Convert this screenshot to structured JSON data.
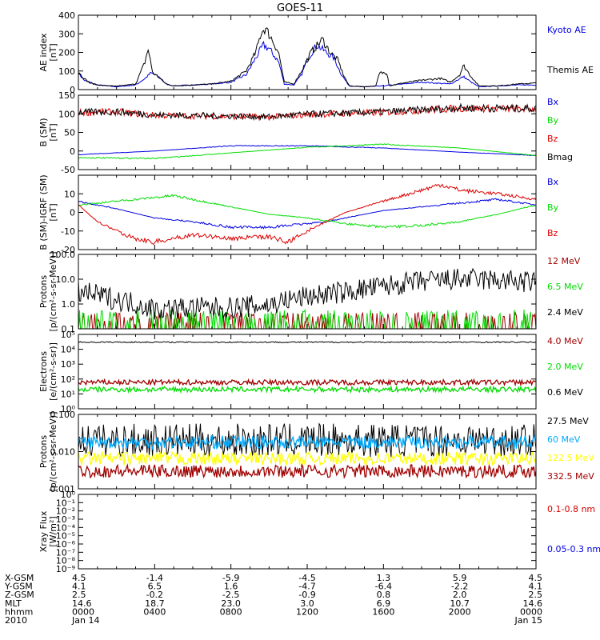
{
  "title": "GOES-11",
  "colors": {
    "black": "#000000",
    "blue": "#0000e0",
    "green": "#00dd00",
    "red": "#dd0000",
    "darkred": "#a00000",
    "yellow": "#ffff00",
    "cyan": "#00aaff"
  },
  "chart_data": [
    {
      "id": "ae",
      "type": "line",
      "ylabel": [
        "AE index",
        "[nT]"
      ],
      "yscale": "linear",
      "ylim": [
        0,
        400
      ],
      "ticks": [
        {
          "v": 0,
          "l": "0"
        },
        {
          "v": 100,
          "l": "100"
        },
        {
          "v": 200,
          "l": "200"
        },
        {
          "v": 300,
          "l": "300"
        },
        {
          "v": 400,
          "l": "400"
        }
      ],
      "series": [
        {
          "name": "Kyoto AE",
          "color": "#0000e0",
          "points": [
            [
              0,
              90
            ],
            [
              0.3,
              50
            ],
            [
              0.6,
              40
            ],
            [
              1,
              25
            ],
            [
              2,
              15
            ],
            [
              3,
              25
            ],
            [
              3.5,
              60
            ],
            [
              3.8,
              90
            ],
            [
              4.2,
              70
            ],
            [
              4.6,
              30
            ],
            [
              5,
              20
            ],
            [
              6,
              25
            ],
            [
              7,
              30
            ],
            [
              8,
              40
            ],
            [
              8.8,
              80
            ],
            [
              9.3,
              170
            ],
            [
              9.7,
              240
            ],
            [
              10,
              220
            ],
            [
              10.5,
              150
            ],
            [
              10.8,
              30
            ],
            [
              11.3,
              25
            ],
            [
              11.7,
              80
            ],
            [
              12,
              160
            ],
            [
              12.5,
              240
            ],
            [
              13,
              200
            ],
            [
              13.4,
              170
            ],
            [
              13.8,
              80
            ],
            [
              14.2,
              20
            ],
            [
              15,
              15
            ],
            [
              16,
              20
            ],
            [
              17,
              30
            ],
            [
              18,
              40
            ],
            [
              19.5,
              30
            ],
            [
              20.2,
              70
            ],
            [
              20.6,
              40
            ],
            [
              21,
              15
            ],
            [
              22,
              20
            ],
            [
              23,
              25
            ],
            [
              24,
              25
            ]
          ]
        },
        {
          "name": "Themis AE",
          "color": "#000000",
          "points": [
            [
              0,
              95
            ],
            [
              0.3,
              60
            ],
            [
              0.6,
              35
            ],
            [
              1,
              25
            ],
            [
              2,
              18
            ],
            [
              3,
              30
            ],
            [
              3.5,
              150
            ],
            [
              3.65,
              220
            ],
            [
              3.9,
              90
            ],
            [
              4.3,
              60
            ],
            [
              4.6,
              30
            ],
            [
              5,
              20
            ],
            [
              6,
              25
            ],
            [
              7,
              30
            ],
            [
              8,
              45
            ],
            [
              8.8,
              100
            ],
            [
              9.3,
              200
            ],
            [
              9.6,
              310
            ],
            [
              9.8,
              330
            ],
            [
              10.1,
              280
            ],
            [
              10.5,
              200
            ],
            [
              10.8,
              40
            ],
            [
              11.3,
              30
            ],
            [
              11.7,
              100
            ],
            [
              12.2,
              200
            ],
            [
              12.8,
              270
            ],
            [
              13.2,
              200
            ],
            [
              13.6,
              160
            ],
            [
              13.9,
              80
            ],
            [
              14.2,
              20
            ],
            [
              15,
              15
            ],
            [
              15.6,
              20
            ],
            [
              15.8,
              90
            ],
            [
              16.2,
              90
            ],
            [
              16.3,
              20
            ],
            [
              17,
              35
            ],
            [
              18,
              50
            ],
            [
              19,
              60
            ],
            [
              19.5,
              40
            ],
            [
              20,
              80
            ],
            [
              20.2,
              130
            ],
            [
              20.6,
              70
            ],
            [
              21,
              20
            ],
            [
              22,
              20
            ],
            [
              23,
              30
            ],
            [
              24,
              35
            ]
          ]
        }
      ]
    },
    {
      "id": "b",
      "type": "line",
      "ylabel": [
        "B (SM)",
        "[nT]"
      ],
      "yscale": "linear",
      "ylim": [
        -50,
        150
      ],
      "ticks": [
        {
          "v": -50,
          "l": "-50"
        },
        {
          "v": 0,
          "l": "0"
        },
        {
          "v": 50,
          "l": "50"
        },
        {
          "v": 100,
          "l": "100"
        },
        {
          "v": 150,
          "l": "150"
        }
      ],
      "series": [
        {
          "name": "Bx",
          "color": "#0000e0",
          "points": [
            [
              0,
              -10
            ],
            [
              4,
              0
            ],
            [
              8,
              14
            ],
            [
              12,
              14
            ],
            [
              16,
              8
            ],
            [
              20,
              -3
            ],
            [
              24,
              -12
            ]
          ]
        },
        {
          "name": "By",
          "color": "#00dd00",
          "points": [
            [
              0,
              -18
            ],
            [
              4,
              -20
            ],
            [
              8,
              -5
            ],
            [
              12,
              10
            ],
            [
              16,
              18
            ],
            [
              20,
              8
            ],
            [
              24,
              -12
            ]
          ]
        },
        {
          "name": "Bz",
          "color": "#dd0000",
          "points": [
            [
              0,
              103
            ],
            [
              2,
              105
            ],
            [
              4,
              96
            ],
            [
              8,
              93
            ],
            [
              10,
              91
            ],
            [
              12,
              98
            ],
            [
              16,
              104
            ],
            [
              20,
              115
            ],
            [
              24,
              113
            ]
          ]
        },
        {
          "name": "Bmag",
          "color": "#000000",
          "points": [
            [
              0,
              104
            ],
            [
              2,
              106
            ],
            [
              4,
              97
            ],
            [
              8,
              94
            ],
            [
              10,
              92
            ],
            [
              12,
              99
            ],
            [
              16,
              105
            ],
            [
              20,
              116
            ],
            [
              24,
              114
            ]
          ]
        }
      ]
    },
    {
      "id": "bdiff",
      "type": "line",
      "ylabel": [
        "B (SM)-IGRF (SM)",
        "[nT]"
      ],
      "yscale": "linear",
      "ylim": [
        -20,
        20
      ],
      "ticks": [
        {
          "v": -20,
          "l": "-20"
        },
        {
          "v": -10,
          "l": "-10"
        },
        {
          "v": 0,
          "l": "0"
        },
        {
          "v": 10,
          "l": "10"
        }
      ],
      "series": [
        {
          "name": "Bx",
          "color": "#0000e0",
          "points": [
            [
              0,
              6
            ],
            [
              2,
              2
            ],
            [
              4,
              -3
            ],
            [
              6,
              -5
            ],
            [
              8,
              -8
            ],
            [
              10,
              -8
            ],
            [
              12,
              -6
            ],
            [
              13,
              -5
            ],
            [
              16,
              1
            ],
            [
              18,
              3
            ],
            [
              20,
              5
            ],
            [
              22,
              7
            ],
            [
              24,
              4
            ]
          ]
        },
        {
          "name": "By",
          "color": "#00dd00",
          "points": [
            [
              0,
              4
            ],
            [
              2,
              6
            ],
            [
              4,
              8
            ],
            [
              5,
              9
            ],
            [
              6,
              7
            ],
            [
              8,
              3
            ],
            [
              10,
              -1
            ],
            [
              12,
              -3
            ],
            [
              14,
              -6
            ],
            [
              16,
              -8
            ],
            [
              18,
              -7
            ],
            [
              20,
              -5
            ],
            [
              22,
              -1
            ],
            [
              24,
              4
            ]
          ]
        },
        {
          "name": "Bz",
          "color": "#dd0000",
          "points": [
            [
              0,
              4
            ],
            [
              1,
              -5
            ],
            [
              2,
              -10
            ],
            [
              3,
              -14
            ],
            [
              4,
              -16
            ],
            [
              5,
              -14
            ],
            [
              6,
              -12
            ],
            [
              8,
              -14
            ],
            [
              10,
              -13
            ],
            [
              11,
              -16
            ],
            [
              12,
              -10
            ],
            [
              14,
              0
            ],
            [
              16,
              6
            ],
            [
              18,
              12
            ],
            [
              19,
              15
            ],
            [
              20,
              12
            ],
            [
              22,
              10
            ],
            [
              24,
              7
            ]
          ]
        }
      ]
    },
    {
      "id": "protons1",
      "type": "line",
      "ylabel": [
        "Protons",
        "[p/(cm²-s-sr-MeV)]"
      ],
      "yscale": "log",
      "ylim": [
        0.1,
        100
      ],
      "ticks": [
        {
          "v": 0.1,
          "l": "0.1"
        },
        {
          "v": 1,
          "l": "1.0"
        },
        {
          "v": 10,
          "l": "10.0"
        },
        {
          "v": 100,
          "l": "100.0"
        }
      ],
      "series": [
        {
          "name": "12 MeV",
          "color": "#a00000",
          "noise": "spikes",
          "level": 0.15
        },
        {
          "name": "6.5 MeV",
          "color": "#00dd00",
          "noise": "spikes",
          "level": 0.2
        },
        {
          "name": "2.4 MeV",
          "color": "#000000",
          "noise": "wide",
          "points": [
            [
              0,
              3
            ],
            [
              2,
              1.5
            ],
            [
              4,
              0.6
            ],
            [
              6,
              0.7
            ],
            [
              8,
              0.7
            ],
            [
              10,
              0.9
            ],
            [
              12,
              2
            ],
            [
              14,
              3
            ],
            [
              16,
              5
            ],
            [
              18,
              8
            ],
            [
              20,
              10
            ],
            [
              22,
              9
            ],
            [
              24,
              7
            ]
          ]
        }
      ]
    },
    {
      "id": "electrons",
      "type": "line",
      "ylabel": [
        "Electrons",
        "[e/(cm²-s-sr)]"
      ],
      "yscale": "log",
      "ylim": [
        1,
        100000
      ],
      "ticks": [
        {
          "v": 1,
          "l": "10⁰"
        },
        {
          "v": 10,
          "l": "10¹"
        },
        {
          "v": 100,
          "l": "10²"
        },
        {
          "v": 1000,
          "l": "10³"
        },
        {
          "v": 10000,
          "l": "10⁴"
        },
        {
          "v": 100000,
          "l": "10⁵"
        }
      ],
      "series": [
        {
          "name": "4.0 MeV",
          "color": "#a00000",
          "noise": "band",
          "level": 60
        },
        {
          "name": "2.0 MeV",
          "color": "#00dd00",
          "noise": "band",
          "level": 20
        },
        {
          "name": "0.6 MeV",
          "color": "#000000",
          "noise": "thin",
          "level": 30000
        }
      ]
    },
    {
      "id": "protons2",
      "type": "line",
      "ylabel": [
        "Protons",
        "[p/(cm²-s-sr-MeV)]"
      ],
      "yscale": "log",
      "ylim": [
        0.001,
        0.1
      ],
      "ticks": [
        {
          "v": 0.001,
          "l": "0.001"
        },
        {
          "v": 0.01,
          "l": "0.010"
        },
        {
          "v": 0.1,
          "l": "0.100"
        }
      ],
      "series": [
        {
          "name": "27.5 MeV",
          "color": "#000000",
          "noise": "wide",
          "level": 0.02
        },
        {
          "name": "60 MeV",
          "color": "#00aaff",
          "noise": "band",
          "level": 0.018
        },
        {
          "name": "122.5 MeV",
          "color": "#ffff00",
          "noise": "band",
          "level": 0.0065
        },
        {
          "name": "332.5 MeV",
          "color": "#a00000",
          "noise": "band",
          "level": 0.003
        }
      ]
    },
    {
      "id": "xray",
      "type": "line",
      "ylabel": [
        "Xray Flux",
        "[W/m²]"
      ],
      "yscale": "log",
      "ylim": [
        1e-09,
        1
      ],
      "ticks": [
        {
          "v": 1e-09,
          "l": "10⁻⁹"
        },
        {
          "v": 1e-08,
          "l": "10⁻⁸"
        },
        {
          "v": 1e-07,
          "l": "10⁻⁷"
        },
        {
          "v": 1e-06,
          "l": "10⁻⁶"
        },
        {
          "v": 1e-05,
          "l": "10⁻⁵"
        },
        {
          "v": 0.0001,
          "l": "10⁻⁴"
        },
        {
          "v": 0.001,
          "l": "10⁻³"
        },
        {
          "v": 0.01,
          "l": "10⁻²"
        },
        {
          "v": 0.1,
          "l": "10⁻¹"
        },
        {
          "v": 1,
          "l": "10⁰"
        }
      ],
      "series": [
        {
          "name": "0.1-0.8 nm",
          "color": "#dd0000",
          "points": []
        },
        {
          "name": "0.05-0.3 nm",
          "color": "#0000e0",
          "points": []
        }
      ]
    }
  ],
  "footer": {
    "labels": [
      "X-GSM",
      "Y-GSM",
      "Z-GSM",
      "MLT",
      "hhmm",
      "2010"
    ],
    "columns": [
      [
        "4.5",
        "4.1",
        "2.5",
        "14.6",
        "0000",
        "Jan 14"
      ],
      [
        "-1.4",
        "6.5",
        "-0.2",
        "18.7",
        "0400",
        ""
      ],
      [
        "-5.9",
        "1.6",
        "-2.5",
        "23.0",
        "0800",
        ""
      ],
      [
        "-4.5",
        "-4.7",
        "-0.9",
        "3.0",
        "1200",
        ""
      ],
      [
        "1.3",
        "-6.4",
        "0.8",
        "6.9",
        "1600",
        ""
      ],
      [
        "5.9",
        "-2.2",
        "2.0",
        "10.7",
        "2000",
        ""
      ],
      [
        "4.5",
        "4.1",
        "2.5",
        "14.6",
        "0000",
        "Jan 15"
      ]
    ]
  }
}
